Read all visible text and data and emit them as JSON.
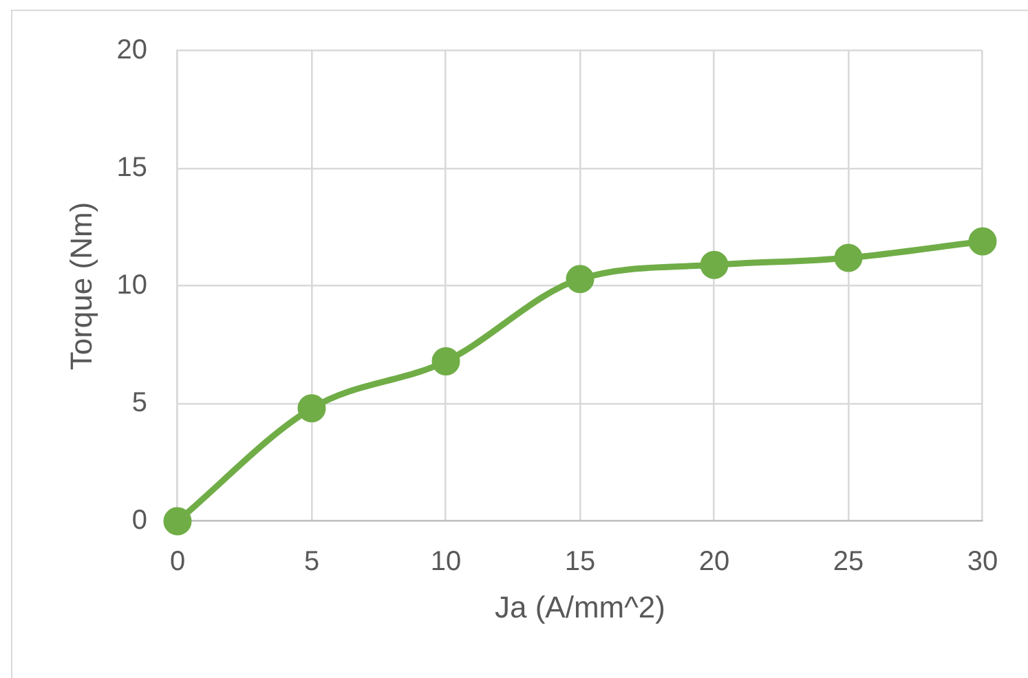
{
  "chart_data": {
    "type": "line",
    "xlabel": "Ja (A/mm^2)",
    "ylabel": "Torque (Nm)",
    "x": [
      0,
      5,
      10,
      15,
      20,
      25,
      30
    ],
    "series": [
      {
        "color": "#70ad47",
        "values": [
          0,
          4.8,
          6.8,
          10.3,
          10.9,
          11.2,
          11.9
        ]
      }
    ],
    "xlim": [
      0,
      30
    ],
    "xticks": [
      0,
      5,
      10,
      15,
      20,
      25,
      30
    ],
    "ylim": [
      0,
      20
    ],
    "yticks": [
      0,
      5,
      10,
      15,
      20
    ],
    "grid": true,
    "marker": "circle",
    "line_style": "solid"
  }
}
